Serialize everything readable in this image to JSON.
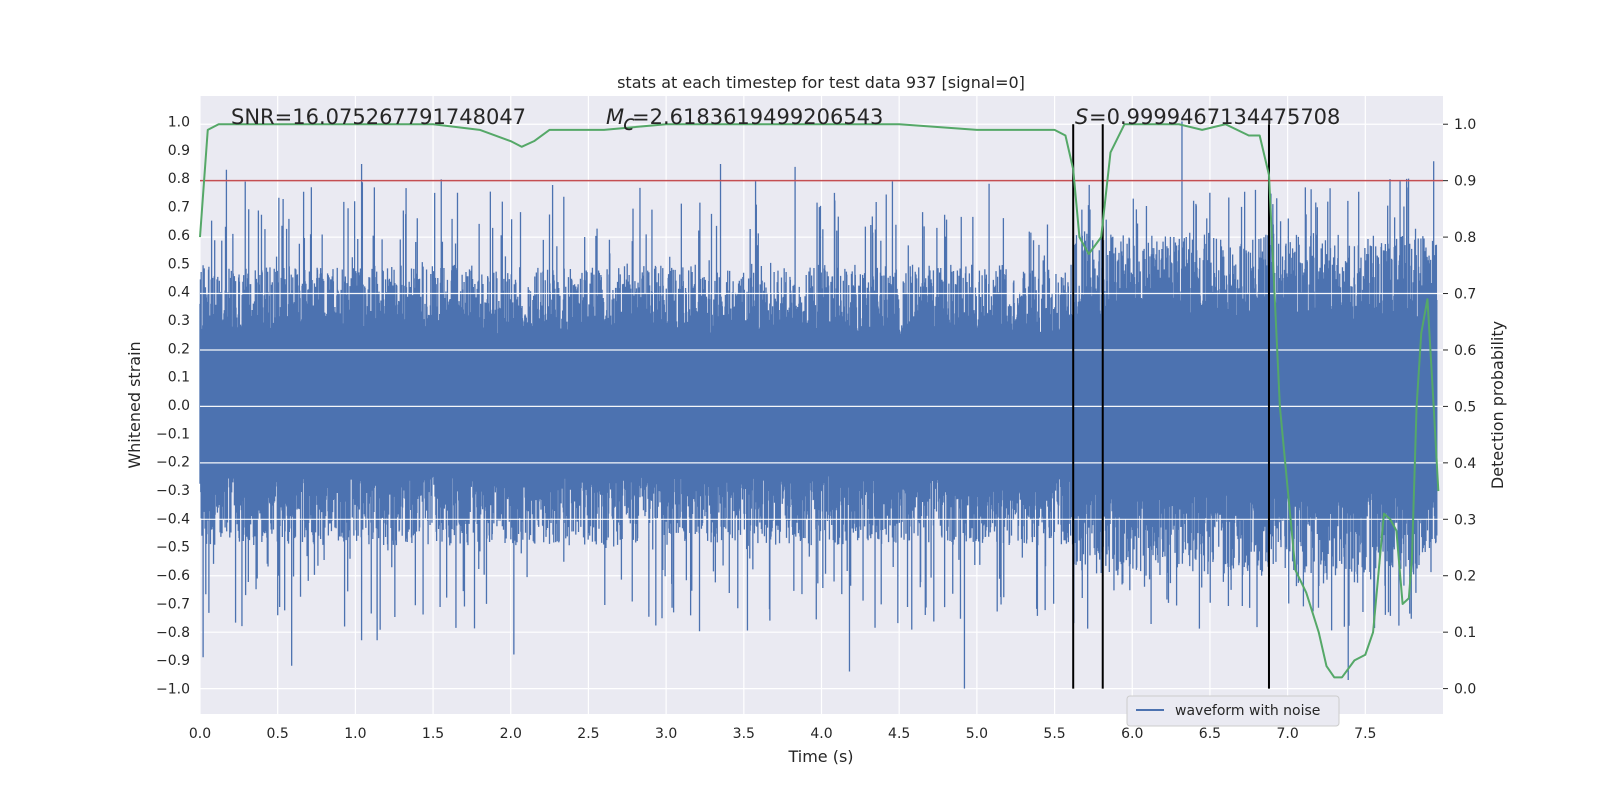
{
  "chart_data": {
    "type": "line",
    "title": "stats at each timestep for test data 937 [signal=0]",
    "xlabel": "Time (s)",
    "ylabel_left": "Whitened strain",
    "ylabel_right": "Detection probability",
    "xlim": [
      0.0,
      8.0
    ],
    "ylim_left": [
      -1.09,
      1.09
    ],
    "ylim_right": [
      -0.045,
      1.05
    ],
    "x_ticks": [
      "0.0",
      "0.5",
      "1.0",
      "1.5",
      "2.0",
      "2.5",
      "3.0",
      "3.5",
      "4.0",
      "4.5",
      "5.0",
      "5.5",
      "6.0",
      "6.5",
      "7.0",
      "7.5"
    ],
    "y_left_ticks": [
      "1.0",
      "0.9",
      "0.8",
      "0.7",
      "0.6",
      "0.5",
      "0.4",
      "0.3",
      "0.2",
      "0.1",
      "0.0",
      "-0.1",
      "-0.2",
      "-0.3",
      "-0.4",
      "-0.5",
      "-0.6",
      "-0.7",
      "-0.8",
      "-0.9",
      "-1.0"
    ],
    "y_right_ticks": [
      "1.0",
      "0.9",
      "0.8",
      "0.7",
      "0.6",
      "0.5",
      "0.4",
      "0.3",
      "0.2",
      "0.1",
      "0.0"
    ],
    "grid": true,
    "annotations": {
      "snr": "SNR=16.075267791748047",
      "mc": "=2.6183619499206543",
      "s": "=0.9999467134475708"
    },
    "legend": {
      "position": "lower-right",
      "entries": [
        "waveform with noise"
      ]
    },
    "threshold": {
      "value": 0.9,
      "axis": "right",
      "color": "#c44e52"
    },
    "vertical_markers": [
      5.62,
      5.81,
      6.88
    ],
    "colors": {
      "waveform": "#4c72b0",
      "probability": "#55a868",
      "threshold": "#c44e52",
      "marker": "#000000",
      "background": "#eaeaf2"
    },
    "series": [
      {
        "name": "waveform with noise",
        "axis": "left",
        "style": "dense noise",
        "envelope": {
          "x": [
            0.0,
            5.62,
            5.62,
            7.96
          ],
          "typical_upper": [
            0.45,
            0.45,
            0.55,
            0.55
          ],
          "typical_lower": [
            -0.45,
            -0.45,
            -0.55,
            -0.55
          ]
        },
        "peaks": [
          {
            "x": 0.02,
            "y": -0.89
          },
          {
            "x": 0.14,
            "y": 0.58
          },
          {
            "x": 0.17,
            "y": 0.83
          },
          {
            "x": 0.27,
            "y": -0.78
          },
          {
            "x": 0.59,
            "y": -0.92
          },
          {
            "x": 1.04,
            "y": 0.85
          },
          {
            "x": 1.04,
            "y": -0.83
          },
          {
            "x": 1.14,
            "y": -0.83
          },
          {
            "x": 2.02,
            "y": -0.88
          },
          {
            "x": 3.35,
            "y": 0.85
          },
          {
            "x": 3.83,
            "y": 0.84
          },
          {
            "x": 4.18,
            "y": -0.94
          },
          {
            "x": 4.92,
            "y": -1.0
          },
          {
            "x": 6.32,
            "y": 1.0
          },
          {
            "x": 7.39,
            "y": -0.97
          },
          {
            "x": 7.94,
            "y": 0.86
          }
        ]
      },
      {
        "name": "detection probability",
        "axis": "right",
        "x": [
          0.0,
          0.05,
          0.12,
          0.3,
          0.6,
          1.0,
          1.5,
          1.8,
          2.0,
          2.07,
          2.15,
          2.25,
          2.4,
          2.6,
          3.0,
          3.5,
          4.0,
          4.5,
          5.0,
          5.2,
          5.5,
          5.57,
          5.62,
          5.66,
          5.72,
          5.8,
          5.86,
          5.95,
          6.1,
          6.3,
          6.45,
          6.6,
          6.75,
          6.82,
          6.88,
          6.95,
          7.05,
          7.12,
          7.2,
          7.25,
          7.3,
          7.35,
          7.43,
          7.5,
          7.55,
          7.62,
          7.66,
          7.7,
          7.74,
          7.78,
          7.8,
          7.83,
          7.86,
          7.9,
          7.94,
          7.97
        ],
        "y": [
          0.8,
          0.99,
          1.0,
          1.0,
          1.0,
          1.0,
          1.0,
          0.99,
          0.97,
          0.96,
          0.97,
          0.99,
          0.99,
          0.99,
          1.0,
          1.0,
          1.0,
          1.0,
          0.99,
          0.99,
          0.99,
          0.98,
          0.92,
          0.8,
          0.77,
          0.8,
          0.95,
          1.0,
          1.0,
          1.0,
          0.99,
          1.0,
          0.98,
          0.98,
          0.91,
          0.5,
          0.21,
          0.17,
          0.1,
          0.04,
          0.02,
          0.02,
          0.05,
          0.06,
          0.1,
          0.31,
          0.3,
          0.28,
          0.15,
          0.16,
          0.23,
          0.5,
          0.63,
          0.69,
          0.5,
          0.35
        ]
      }
    ]
  }
}
